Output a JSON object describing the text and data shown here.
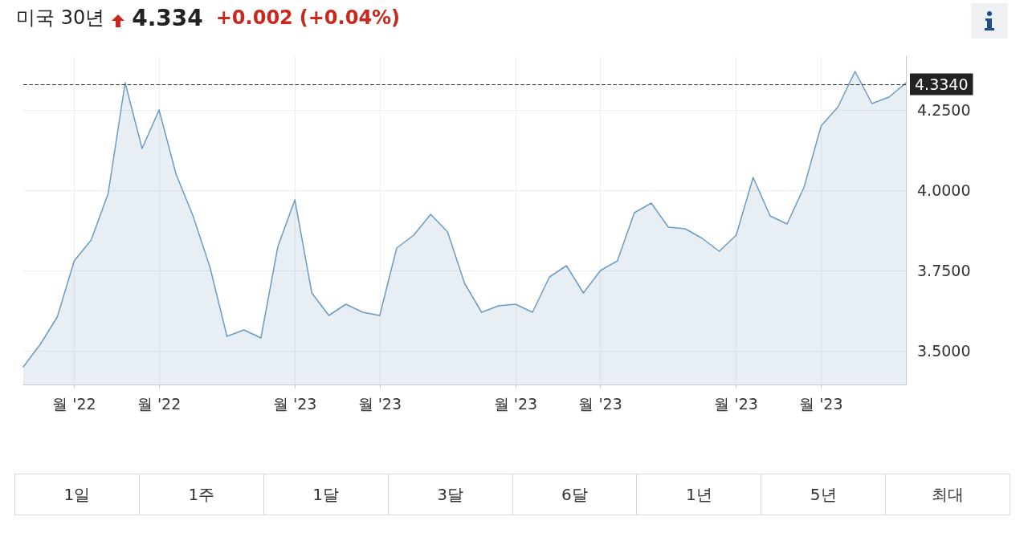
{
  "chart_data": {
    "type": "area",
    "title": "미국 30년",
    "annotations": [
      "4.334",
      "+0.002",
      "(+0.04%)",
      "1일",
      "1주",
      "1달",
      "3달",
      "6달",
      "1년",
      "5년",
      "최대"
    ],
    "categories": [
      null,
      null,
      null,
      "월 '22",
      null,
      null,
      null,
      null,
      "월 '22",
      null,
      null,
      null,
      null,
      null,
      null,
      null,
      "월 '23",
      null,
      null,
      null,
      null,
      "월 '23",
      null,
      null,
      null,
      null,
      null,
      null,
      null,
      "월 '23",
      null,
      null,
      null,
      null,
      "월 '23",
      null,
      null,
      null,
      null,
      null,
      null,
      null,
      "월 '23",
      null,
      null,
      null,
      null,
      "월 '23",
      null,
      null,
      null,
      null,
      null
    ],
    "series": [
      {
        "color": "#6b9bc3",
        "values": [
          3.45,
          3.52,
          3.605,
          3.78,
          3.845,
          3.99,
          4.335,
          4.13,
          4.25,
          4.05,
          3.92,
          3.76,
          3.545,
          3.565,
          3.54,
          3.825,
          3.97,
          3.68,
          3.61,
          3.645,
          3.62,
          3.61,
          3.82,
          3.86,
          3.925,
          3.87,
          3.71,
          3.62,
          3.64,
          3.645,
          3.62,
          3.73,
          3.765,
          3.68,
          3.75,
          3.78,
          3.93,
          3.96,
          3.885,
          3.88,
          3.85,
          3.81,
          3.86,
          4.04,
          3.92,
          3.895,
          4.01,
          4.2,
          4.26,
          4.37,
          4.27,
          4.29,
          4.334
        ]
      }
    ],
    "ylim": [
      3.395,
      4.4175
    ],
    "yticks": [
      {
        "value": 3.5,
        "label": "3.5000"
      },
      {
        "value": 3.75,
        "label": "3.7500"
      },
      {
        "value": 4,
        "label": "4.0000"
      },
      {
        "value": 4.25,
        "label": "4.2500"
      }
    ],
    "ref_lines": [
      {
        "axis": "y",
        "value": 4.334,
        "label": "4.3340",
        "color": "#333333",
        "line_style": "dashed"
      }
    ],
    "grid": true,
    "marker": "none",
    "line_style": "solid"
  }
}
